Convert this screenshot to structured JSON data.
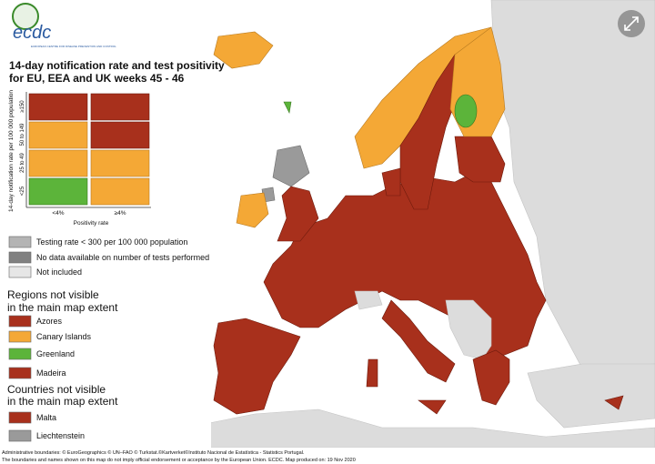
{
  "logo": {
    "name": "ecdc",
    "subtitle": "EUROPEAN CENTRE FOR DISEASE PREVENTION AND CONTROL"
  },
  "title": [
    "14-day notification rate and test positivity",
    "for EU, EEA and UK weeks 45 - 46"
  ],
  "matrix": {
    "y_label": "14-day notification rate per 100 000 population",
    "rows": [
      "≥150",
      "50 to 149",
      "25 to 49",
      "<25"
    ],
    "columns": [
      "<4%",
      "≥4%"
    ],
    "x_label": "Positivity rate"
  },
  "legend": [
    "Testing rate < 300 per 100 000 population",
    "No data available on number of tests performed",
    "Not included"
  ],
  "regions": {
    "heading": [
      "Regions not visible",
      "in the main map extent"
    ],
    "items": [
      "Azores",
      "Canary Islands",
      "Greenland",
      "Madeira"
    ]
  },
  "countries": {
    "heading": [
      "Countries not visible",
      "in the main map extent"
    ],
    "items": [
      "Malta",
      "Liechtenstein"
    ]
  },
  "footer": [
    "Administrative boundaries: © EuroGeographics © UN–FAO © Turkstat.©Kartverket©Instituto Nacional de Estatística - Statistics Portugal.",
    "The boundaries and names shown on this map do not imply official endorsement or acceptance by the European Union. ECDC. Map produced on: 19 Nov 2020"
  ]
}
